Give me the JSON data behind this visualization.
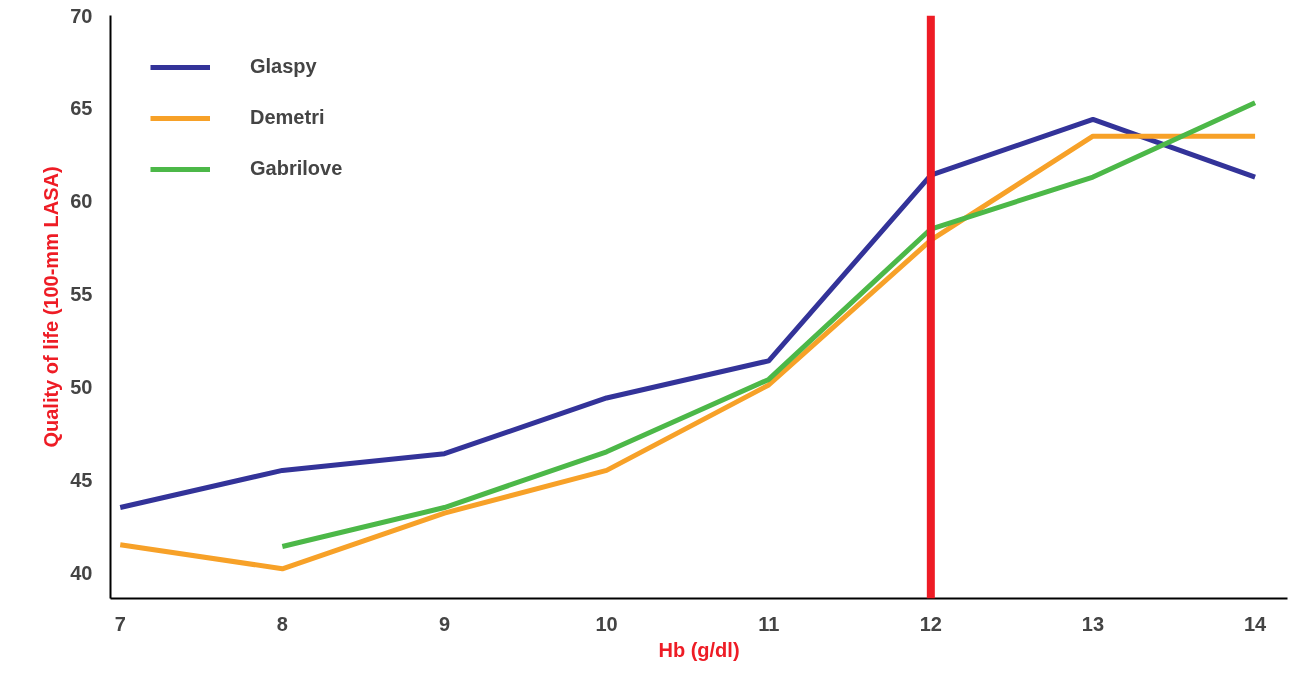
{
  "chart_data": {
    "type": "line",
    "xlabel": "Hb (g/dl)",
    "ylabel": "Quality of life (100-mm LASA)",
    "x": [
      7,
      8,
      9,
      10,
      11,
      12,
      13,
      14
    ],
    "series": [
      {
        "name": "Glaspy",
        "color": "#333399",
        "values": [
          43.5,
          45.5,
          46.4,
          49.4,
          51.4,
          61.4,
          64.4,
          61.3
        ]
      },
      {
        "name": "Demetri",
        "color": "#f7a128",
        "values": [
          41.5,
          40.2,
          43.2,
          45.5,
          50.1,
          57.9,
          63.5,
          63.5
        ]
      },
      {
        "name": "Gabrilove",
        "color": "#4cb848",
        "values": [
          null,
          41.4,
          43.5,
          46.5,
          50.4,
          58.5,
          61.3,
          65.3
        ]
      }
    ],
    "xlim": [
      6.94,
      14.2
    ],
    "ylim": [
      38.6,
      70
    ],
    "xticks": [
      7,
      8,
      9,
      10,
      11,
      12,
      13,
      14
    ],
    "yticks": [
      40,
      45,
      50,
      55,
      60,
      65,
      70
    ],
    "ref_lines": [
      {
        "axis": "x",
        "value": 12,
        "color": "#ee1c25"
      }
    ],
    "grid": false,
    "legend": "top left",
    "marker": "none",
    "line_style": "solid"
  }
}
